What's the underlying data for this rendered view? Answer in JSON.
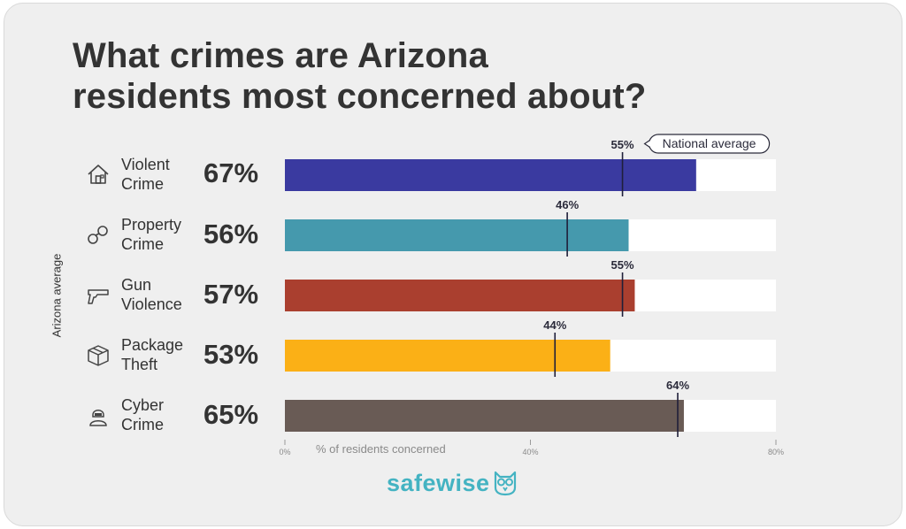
{
  "chart_data": {
    "type": "bar",
    "title": [
      "What crimes are Arizona",
      "residents most concerned about?"
    ],
    "ylabel": "Arizona average",
    "xlabel": "% of residents concerned",
    "xlim": [
      0,
      80
    ],
    "xticks": [
      "0%",
      "40%",
      "80%"
    ],
    "categories": [
      {
        "name": [
          "Violent",
          "Crime"
        ],
        "icon": "house-icon",
        "value": 67,
        "value_label": "67%",
        "national": 55,
        "national_label": "55%",
        "color": "#3a3aa0"
      },
      {
        "name": [
          "Property",
          "Crime"
        ],
        "icon": "handcuffs-icon",
        "value": 56,
        "value_label": "56%",
        "national": 46,
        "national_label": "46%",
        "color": "#4599ad"
      },
      {
        "name": [
          "Gun",
          "Violence"
        ],
        "icon": "gun-icon",
        "value": 57,
        "value_label": "57%",
        "national": 55,
        "national_label": "55%",
        "color": "#aa3f2f"
      },
      {
        "name": [
          "Package",
          "Theft"
        ],
        "icon": "package-icon",
        "value": 53,
        "value_label": "53%",
        "national": 44,
        "national_label": "44%",
        "color": "#fbb016"
      },
      {
        "name": [
          "Cyber",
          "Crime"
        ],
        "icon": "hacker-icon",
        "value": 65,
        "value_label": "65%",
        "national": 64,
        "national_label": "64%",
        "color": "#695b55"
      }
    ],
    "annotation": "National average"
  },
  "logo": {
    "text": "safewise",
    "icon": "owl-icon"
  }
}
